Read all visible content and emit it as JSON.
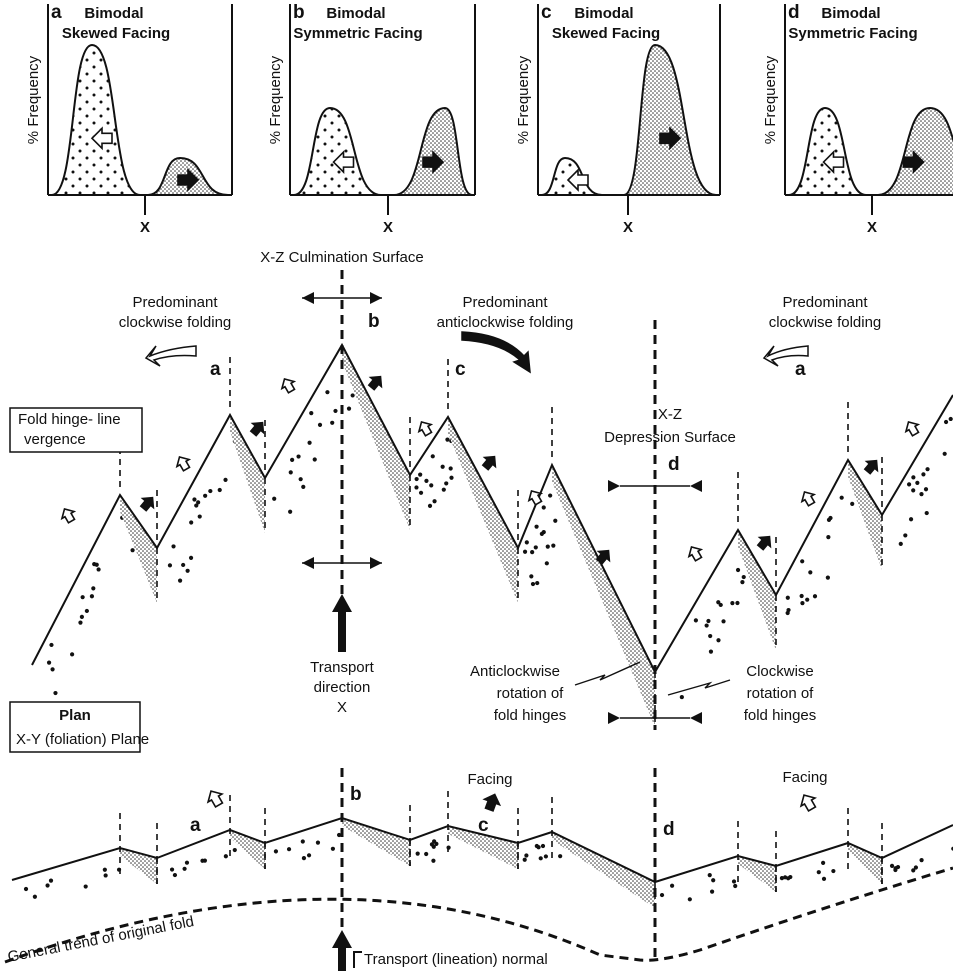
{
  "panels": [
    {
      "letter": "a",
      "title": [
        "Bimodal",
        "Skewed Facing"
      ],
      "y_label": "% Frequency",
      "x_label": "X"
    },
    {
      "letter": "b",
      "title": [
        "Bimodal",
        "Symmetric Facing"
      ],
      "y_label": "% Frequency",
      "x_label": "X"
    },
    {
      "letter": "c",
      "title": [
        "Bimodal",
        "Skewed Facing"
      ],
      "y_label": "% Frequency",
      "x_label": "X"
    },
    {
      "letter": "d",
      "title": [
        "Bimodal",
        "Symmetric Facing"
      ],
      "y_label": "% Frequency",
      "x_label": "X"
    }
  ],
  "profile": {
    "culmination_label": "X-Z Culmination Surface",
    "culmination_letter": "b",
    "left_note": {
      "lines": [
        "Predominant",
        "clockwise  folding"
      ],
      "letter": "a"
    },
    "middle_note": {
      "lines": [
        "Predominant",
        "anticlockwise folding"
      ],
      "letter": "c"
    },
    "right_note": {
      "lines": [
        "Predominant",
        "clockwise  folding"
      ],
      "letter": "a"
    },
    "vergence_box": [
      "Fold hinge- line",
      "vergence"
    ],
    "depression_label": [
      "X-Z",
      "Depression  Surface"
    ],
    "depression_letter": "d",
    "transport": [
      "Transport",
      "direction",
      "X"
    ],
    "anticlockwise_rotation": [
      "Anticlockwise",
      "rotation of",
      "fold hinges"
    ],
    "clockwise_rotation": [
      "Clockwise",
      "rotation of",
      "fold hinges"
    ]
  },
  "plan": {
    "box_title": "Plan",
    "box_subtitle": "X-Y (foliation) Plane",
    "letters": [
      "a",
      "b",
      "c",
      "d"
    ],
    "facing_labels": [
      "Facing",
      "Facing"
    ],
    "trend_label": "General trend of original fold",
    "transport_label": "Transport (lineation) normal"
  }
}
